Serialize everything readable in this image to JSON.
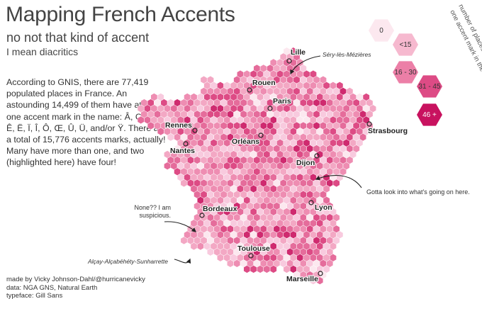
{
  "header": {
    "title": "Mapping French Accents",
    "subtitle": "no not that kind of accent",
    "subtitle2": "I mean diacritics"
  },
  "body_text": "According to GNIS, there are 77,419 populated places in France. An astounding 14,499 of them have at least one accent mark in the name: Â, Ç, É, È, Ê, Ë, Ï, Î, Ô, Œ, Û, Ü, and/or Ÿ. There are a total of 15,776 accents marks, actually! Many have more than one, and two (highlighted here) have four!",
  "credits": [
    "made by Vicky Johnson-Dahl/@hurricanevicky",
    "data: NGA GNS, Natural Earth",
    "typeface: Gill Sans"
  ],
  "legend": {
    "title_lines": [
      "number of places with at least",
      "one accent mark in the name"
    ],
    "bins": [
      {
        "label": "0",
        "color": "#fce8ef"
      },
      {
        "label": "<15",
        "color": "#f6b9cf"
      },
      {
        "label": "16 - 30",
        "color": "#ec7fa7"
      },
      {
        "label": "31 - 45",
        "color": "#dd4b85"
      },
      {
        "label": "46 +",
        "color": "#c8125f"
      }
    ]
  },
  "cities": [
    {
      "name": "Lille"
    },
    {
      "name": "Rouen"
    },
    {
      "name": "Paris"
    },
    {
      "name": "Rennes"
    },
    {
      "name": "Orléans"
    },
    {
      "name": "Strasbourg"
    },
    {
      "name": "Nantes"
    },
    {
      "name": "Dijon"
    },
    {
      "name": "Lyon"
    },
    {
      "name": "Bordeaux"
    },
    {
      "name": "Toulouse"
    },
    {
      "name": "Marseille"
    }
  ],
  "annotations": {
    "sery": "Séry-lès-Mézières",
    "lyon_note": "Gotta look into what's going on here.",
    "none_note_lines": [
      "None?? I am",
      "suspicious."
    ],
    "alcay": "Alçay-Alçabéhéty-Sunharrette"
  }
}
